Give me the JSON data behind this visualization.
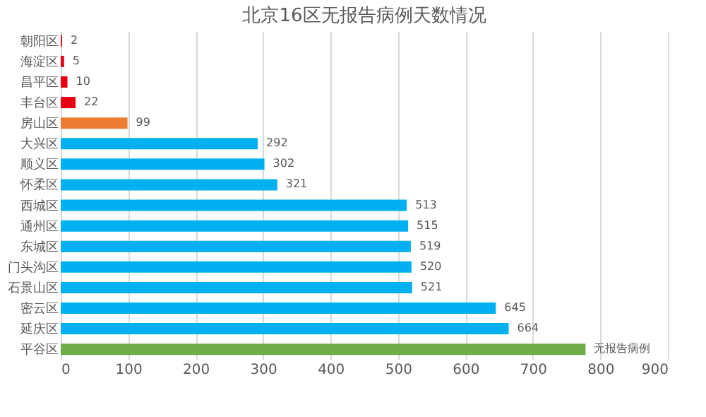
{
  "chart_data": {
    "type": "bar",
    "orientation": "horizontal",
    "title": "北京16区无报告病例天数情况",
    "categories": [
      "朝阳区",
      "海淀区",
      "昌平区",
      "丰台区",
      "房山区",
      "大兴区",
      "顺义区",
      "怀柔区",
      "西城区",
      "通州区",
      "东城区",
      "门头沟区",
      "石景山区",
      "密云区",
      "延庆区",
      "平谷区"
    ],
    "values": [
      2,
      5,
      10,
      22,
      99,
      292,
      302,
      321,
      513,
      515,
      519,
      520,
      521,
      645,
      664,
      778
    ],
    "value_labels": [
      "2",
      "5",
      "10",
      "22",
      "99",
      "292",
      "302",
      "321",
      "513",
      "515",
      "519",
      "520",
      "521",
      "645",
      "664",
      "无报告病例"
    ],
    "colors": [
      "#e60012",
      "#e60012",
      "#e60012",
      "#e60012",
      "#ed7d31",
      "#00b0f0",
      "#00b0f0",
      "#00b0f0",
      "#00b0f0",
      "#00b0f0",
      "#00b0f0",
      "#00b0f0",
      "#00b0f0",
      "#00b0f0",
      "#00b0f0",
      "#70ad47"
    ],
    "xlim": [
      0,
      900
    ],
    "xticks": [
      0,
      100,
      200,
      300,
      400,
      500,
      600,
      700,
      800,
      900
    ],
    "grid": "x"
  }
}
